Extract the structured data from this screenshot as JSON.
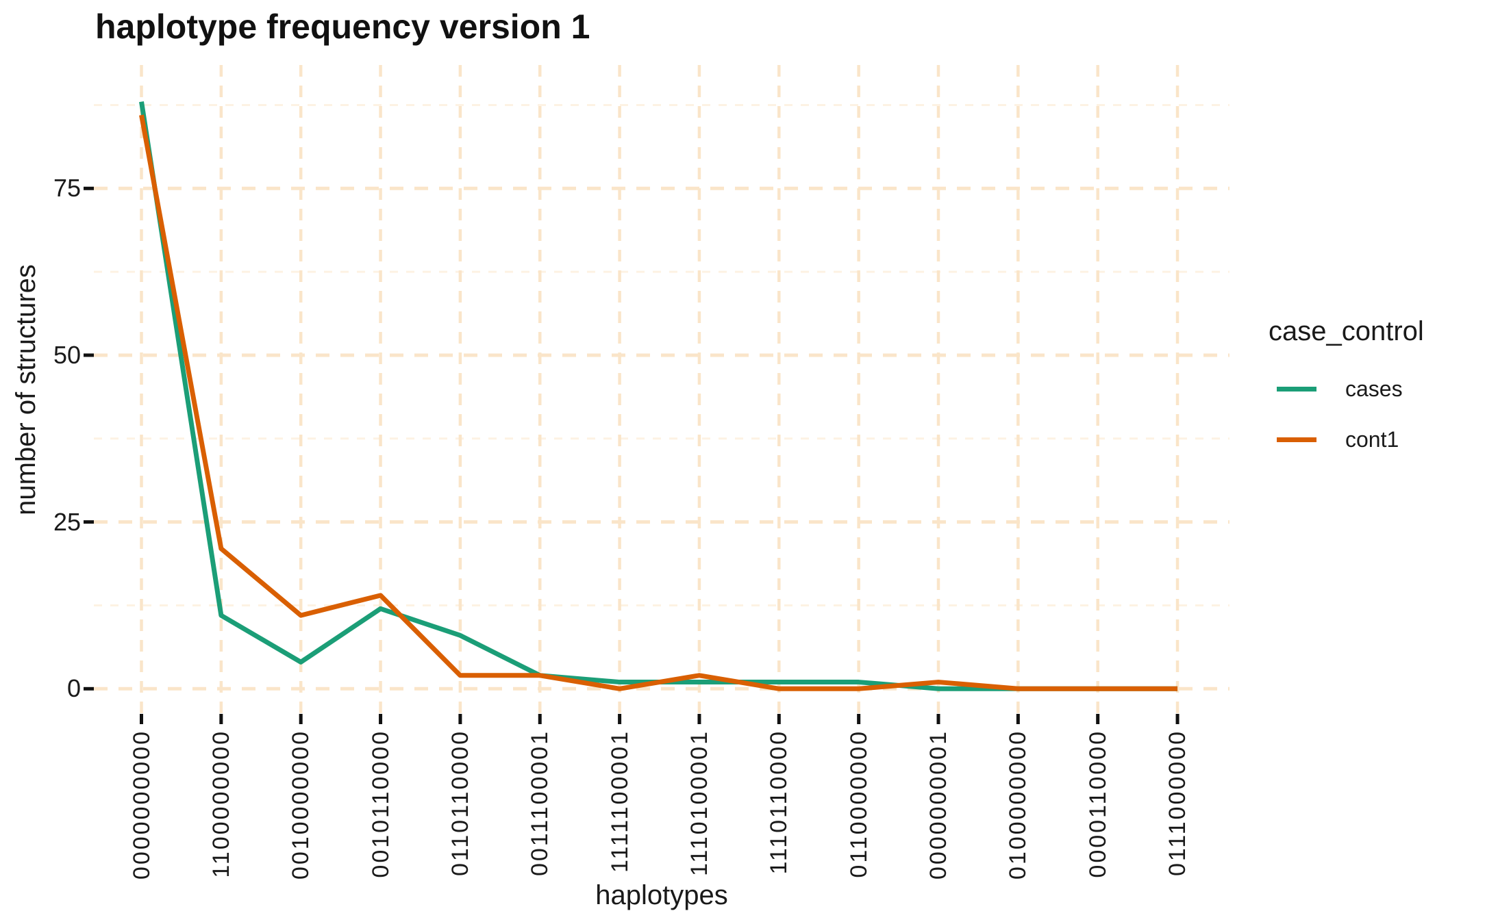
{
  "title": "haplotype frequency version 1",
  "axes": {
    "x_title": "haplotypes",
    "y_title": "number of structures",
    "y_ticks": [
      0,
      25,
      50,
      75
    ],
    "y_minor_ticks": [
      12.5,
      37.5,
      62.5,
      87.5
    ]
  },
  "legend": {
    "title": "case_control",
    "items": [
      {
        "label": "cases",
        "color": "#1B9E77"
      },
      {
        "label": "cont1",
        "color": "#D95F02"
      }
    ]
  },
  "colors": {
    "grid_major": "#fae5c9",
    "grid_minor": "#fdf2e3",
    "tick": "#111111",
    "text": "#1a1a1a",
    "background": "#ffffff"
  },
  "chart_data": {
    "type": "line",
    "title": "haplotype frequency version 1",
    "xlabel": "haplotypes",
    "ylabel": "number of structures",
    "categories": [
      "0000000000",
      "1100000000",
      "0010000000",
      "0010110000",
      "0110110000",
      "0011100001",
      "1111100001",
      "1110100001",
      "1110110000",
      "0110000000",
      "0000000001",
      "0100000000",
      "0000110000",
      "0111000000"
    ],
    "series": [
      {
        "name": "cases",
        "color": "#1B9E77",
        "values": [
          88,
          11,
          4,
          12,
          8,
          2,
          1,
          1,
          1,
          1,
          0,
          0,
          0,
          0
        ]
      },
      {
        "name": "cont1",
        "color": "#D95F02",
        "values": [
          86,
          21,
          11,
          14,
          2,
          2,
          0,
          2,
          0,
          0,
          1,
          0,
          0,
          0
        ]
      }
    ],
    "ylim": [
      0,
      88
    ],
    "yticks": [
      0,
      25,
      50,
      75
    ],
    "grid": true,
    "legend_position": "right",
    "legend_title": "case_control"
  }
}
